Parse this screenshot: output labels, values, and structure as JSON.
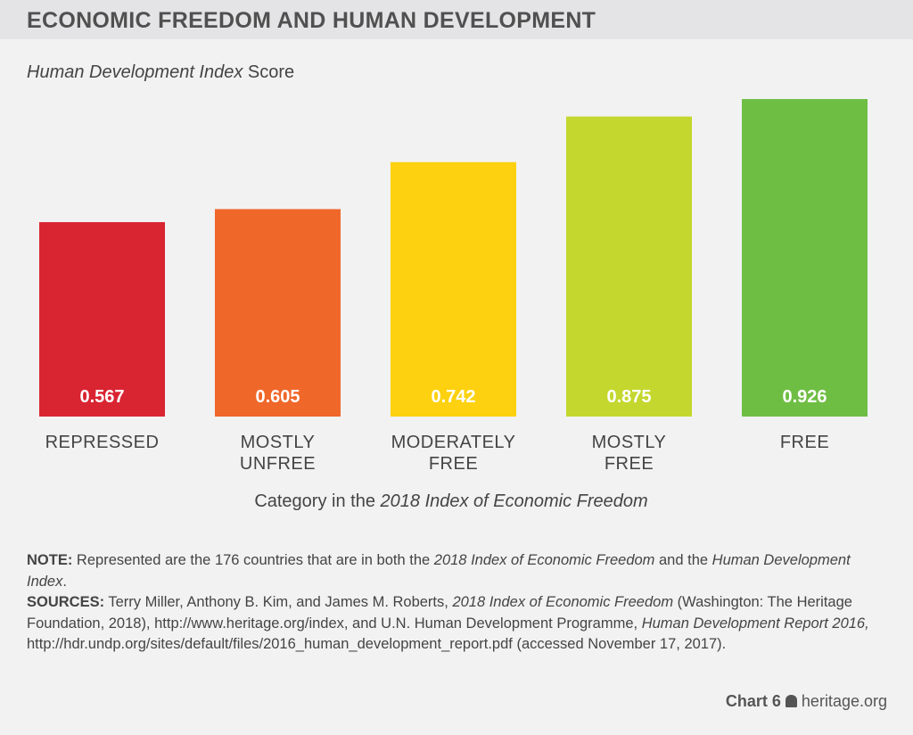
{
  "header": {
    "title": "ECONOMIC FREEDOM AND HUMAN DEVELOPMENT"
  },
  "chart_data": {
    "type": "bar",
    "title": "ECONOMIC FREEDOM AND HUMAN DEVELOPMENT",
    "ylabel_italic": "Human Development Index",
    "ylabel_rest": " Score",
    "xlabel_pre": "Category in the ",
    "xlabel_italic": "2018 Index of Economic Freedom",
    "categories": [
      [
        "REPRESSED"
      ],
      [
        "MOSTLY",
        "UNFREE"
      ],
      [
        "MODERATELY",
        "FREE"
      ],
      [
        "MOSTLY",
        "FREE"
      ],
      [
        "FREE"
      ]
    ],
    "values": [
      0.567,
      0.605,
      0.742,
      0.875,
      0.926
    ],
    "value_labels": [
      "0.567",
      "0.605",
      "0.742",
      "0.875",
      "0.926"
    ],
    "colors": [
      "#d92432",
      "#f0672a",
      "#fdd10f",
      "#c4d72e",
      "#6fbe44"
    ],
    "ylim": [
      0,
      1
    ],
    "grid": false
  },
  "notes": {
    "note_label": "NOTE:",
    "note_text1": " Represented are the 176 countries that are in both the ",
    "note_ital1": "2018 Index of Economic Freedom",
    "note_text2": " and the ",
    "note_ital2": "Human Development Index",
    "note_text3": ".",
    "sources_label": "SOURCES:",
    "sources_text1": " Terry Miller, Anthony B. Kim, and James M. Roberts, ",
    "sources_ital1": "2018 Index of Economic Freedom",
    "sources_text2": " (Washington: The Heritage Foundation, 2018), http://www.heritage.org/index, and U.N. Human Development Programme, ",
    "sources_ital2": "Human Development Report 2016,",
    "sources_text3": " http://hdr.undp.org/sites/default/files/2016_human_development_report.pdf (accessed November 17, 2017)."
  },
  "footer": {
    "chart_label": "Chart 6",
    "logo_icon": "liberty-bell-icon",
    "site": "heritage.org"
  }
}
